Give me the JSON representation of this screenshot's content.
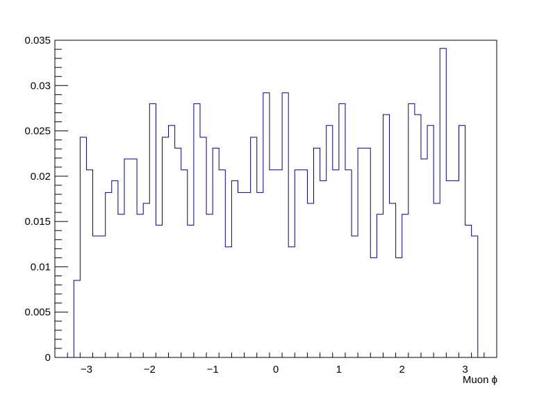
{
  "chart_data": {
    "type": "histogram",
    "title": "",
    "xlabel": "Muon ϕ",
    "ylabel": "",
    "xlim": [
      -3.5,
      3.5
    ],
    "ylim": [
      0,
      0.035
    ],
    "x_ticks": [
      -3,
      -2,
      -1,
      0,
      1,
      2,
      3
    ],
    "x_tick_labels": [
      "−3",
      "−2",
      "−1",
      "0",
      "1",
      "2",
      "3"
    ],
    "y_ticks": [
      0,
      0.005,
      0.01,
      0.015,
      0.02,
      0.025,
      0.03,
      0.035
    ],
    "y_tick_labels": [
      "0",
      "0.005",
      "0.01",
      "0.015",
      "0.02",
      "0.025",
      "0.03",
      "0.035"
    ],
    "grid": false,
    "line_color": "#000080",
    "bin_start": -3.2,
    "bin_width": 0.1,
    "values": [
      0.0085,
      0.0243,
      0.0207,
      0.0134,
      0.0134,
      0.0182,
      0.0195,
      0.0158,
      0.0219,
      0.0219,
      0.0158,
      0.017,
      0.028,
      0.0146,
      0.0243,
      0.0256,
      0.0231,
      0.0207,
      0.0146,
      0.028,
      0.0243,
      0.0158,
      0.0231,
      0.0207,
      0.0122,
      0.0195,
      0.0182,
      0.0182,
      0.0243,
      0.0182,
      0.0292,
      0.0207,
      0.0207,
      0.0292,
      0.0122,
      0.0207,
      0.0207,
      0.017,
      0.0231,
      0.0195,
      0.0256,
      0.0207,
      0.028,
      0.0207,
      0.0134,
      0.0231,
      0.0231,
      0.011,
      0.0158,
      0.0268,
      0.017,
      0.011,
      0.0158,
      0.028,
      0.0268,
      0.0219,
      0.0256,
      0.017,
      0.0341,
      0.0195,
      0.0195,
      0.0256,
      0.0146,
      0.0134
    ]
  }
}
